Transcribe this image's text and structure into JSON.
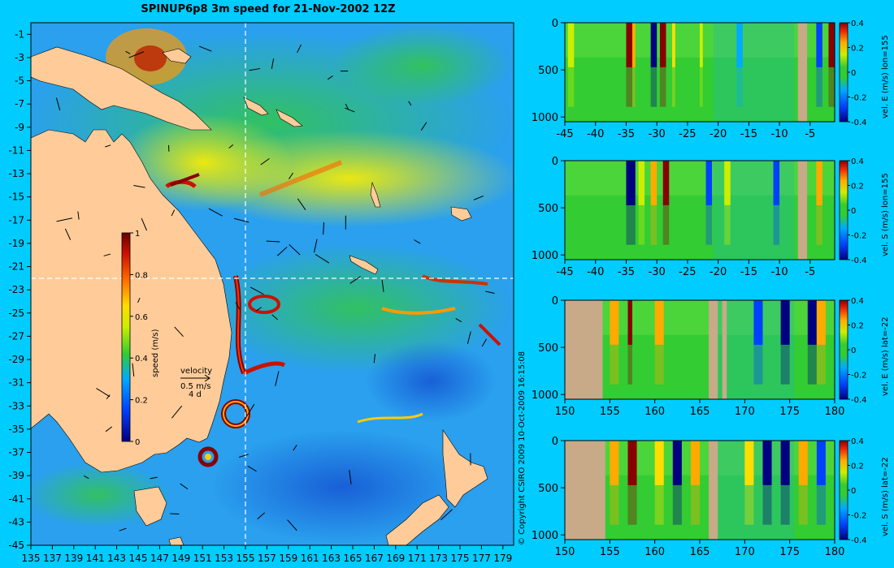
{
  "title": "SPINUP6p8 3m speed for 21-Nov-2002 12Z",
  "copyright": "© Copyright CSIRO 2009   10-Oct-2009 16:15:08",
  "colors": {
    "background": "#00ccff",
    "land": "#ffcc99",
    "section_land": "#c8aa88",
    "crosshair": "#ffffff"
  },
  "chart_data": [
    {
      "type": "heatmap",
      "name": "surface-speed-map",
      "title": "SPINUP6p8 3m speed for 21-Nov-2002 12Z",
      "xlabel": "",
      "ylabel": "",
      "x_ticks": [
        "135",
        "137",
        "139",
        "141",
        "143",
        "145",
        "147",
        "149",
        "151",
        "153",
        "155",
        "157",
        "159",
        "161",
        "163",
        "165",
        "167",
        "169",
        "171",
        "173",
        "175",
        "177",
        "179"
      ],
      "y_ticks": [
        "-1",
        "-3",
        "-5",
        "-7",
        "-9",
        "-11",
        "-13",
        "-15",
        "-17",
        "-19",
        "-21",
        "-23",
        "-25",
        "-27",
        "-29",
        "-31",
        "-33",
        "-35",
        "-37",
        "-39",
        "-41",
        "-43",
        "-45"
      ],
      "xlim": [
        135,
        180
      ],
      "ylim": [
        -45,
        0
      ],
      "colorbar": {
        "label": "speed (m/s)",
        "ticks": [
          "0",
          "0.2",
          "0.4",
          "0.6",
          "0.8",
          "1"
        ],
        "range": [
          0,
          1
        ]
      },
      "velocity_key": {
        "label": "velocity",
        "value": "0.5 m/s",
        "time": "4 d"
      },
      "crosshair": {
        "lon": 155,
        "lat": -22
      },
      "grid": false
    },
    {
      "type": "heatmap",
      "name": "vel-e-lon155",
      "colorbar": {
        "label": "vel. E (m/s) lon=155",
        "ticks": [
          "0.4",
          "0.2",
          "0",
          "-0.2",
          "-0.4"
        ],
        "range": [
          -0.4,
          0.4
        ]
      },
      "x_ticks": [
        "-45",
        "-40",
        "-35",
        "-30",
        "-25",
        "-20",
        "-15",
        "-10",
        "-5"
      ],
      "y_ticks": [
        "0",
        "500",
        "1000"
      ],
      "xlim": [
        -45,
        -1
      ],
      "ylim": [
        1050,
        0
      ]
    },
    {
      "type": "heatmap",
      "name": "vel-s-lon155",
      "colorbar": {
        "label": "vel. S (m/s) lon=155",
        "ticks": [
          "0.4",
          "0.2",
          "0",
          "-0.2",
          "-0.4"
        ],
        "range": [
          -0.4,
          0.4
        ]
      },
      "x_ticks": [
        "-45",
        "-40",
        "-35",
        "-30",
        "-25",
        "-20",
        "-15",
        "-10",
        "-5"
      ],
      "y_ticks": [
        "0",
        "500",
        "1000"
      ],
      "xlim": [
        -45,
        -1
      ],
      "ylim": [
        1050,
        0
      ]
    },
    {
      "type": "heatmap",
      "name": "vel-e-lat-22",
      "colorbar": {
        "label": "vel. E (m/s) lat=-22",
        "ticks": [
          "0.4",
          "0.2",
          "0",
          "-0.2",
          "-0.4"
        ],
        "range": [
          -0.4,
          0.4
        ]
      },
      "x_ticks": [
        "150",
        "155",
        "160",
        "165",
        "170",
        "175",
        "180"
      ],
      "y_ticks": [
        "0",
        "500",
        "1000"
      ],
      "xlim": [
        150,
        180
      ],
      "ylim": [
        1050,
        0
      ]
    },
    {
      "type": "heatmap",
      "name": "vel-s-lat-22",
      "colorbar": {
        "label": "vel. S (m/s) lat=-22",
        "ticks": [
          "0.4",
          "0.2",
          "0",
          "-0.2",
          "-0.4"
        ],
        "range": [
          -0.4,
          0.4
        ]
      },
      "x_ticks": [
        "150",
        "155",
        "160",
        "165",
        "170",
        "175",
        "180"
      ],
      "y_ticks": [
        "0",
        "500",
        "1000"
      ],
      "xlim": [
        150,
        180
      ],
      "ylim": [
        1050,
        0
      ]
    }
  ]
}
